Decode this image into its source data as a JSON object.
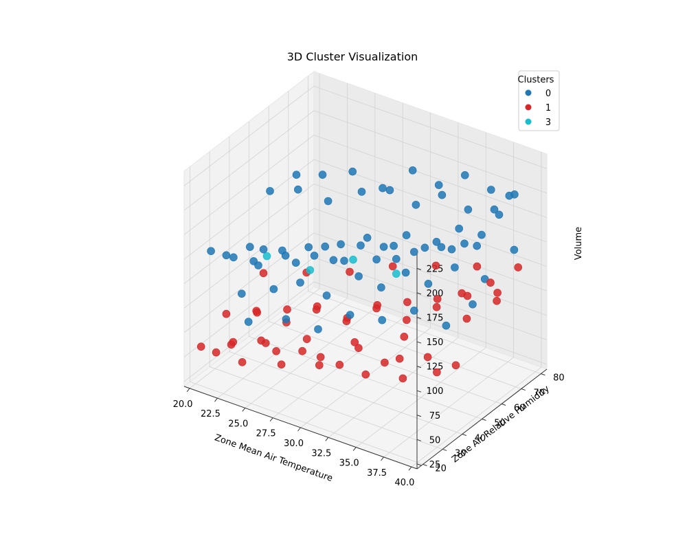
{
  "chart_data": {
    "type": "scatter",
    "title": "3D Cluster Visualization",
    "xlabel": "Zone Mean Air Temperature",
    "ylabel": "Zone Air Relative Humidity",
    "zlabel": "Volume",
    "xlim": [
      19.5,
      40.5
    ],
    "ylim": [
      17,
      83
    ],
    "zlim": [
      20,
      240
    ],
    "xticks": [
      "20.0",
      "22.5",
      "25.0",
      "27.5",
      "30.0",
      "32.5",
      "35.0",
      "37.5",
      "40.0"
    ],
    "yticks": [
      "20",
      "30",
      "40",
      "50",
      "60",
      "70",
      "80"
    ],
    "zticks": [
      "25",
      "50",
      "75",
      "100",
      "125",
      "150",
      "175",
      "200",
      "225"
    ],
    "grid": true,
    "legend": {
      "title": "Clusters",
      "position": "top-right"
    },
    "series": [
      {
        "name": "0",
        "color": "#1f77b4",
        "x": [
          20.5,
          21.0,
          22.0,
          23.0,
          24.0,
          25.5,
          27.0,
          28.0,
          29.5,
          31.0,
          32.0,
          33.5,
          35.0,
          36.0,
          37.5,
          20.8,
          22.5,
          24.5,
          26.0,
          27.5,
          29.0,
          30.5,
          32.5,
          34.0,
          35.5,
          21.5,
          23.5,
          25.0,
          26.5,
          28.5,
          30.0,
          31.5,
          33.0,
          34.5,
          36.5,
          22.0,
          24.0,
          26.0,
          28.0,
          30.0,
          32.0,
          34.0,
          36.0,
          38.0,
          39.0,
          23.0,
          25.5,
          27.5,
          29.5,
          31.5,
          33.5,
          35.5,
          37.0,
          20.5,
          22.5,
          24.5,
          27.0,
          29.0,
          31.0,
          33.0,
          35.0,
          37.0,
          38.5,
          21.0,
          23.5,
          26.0,
          28.5,
          31.0,
          34.0,
          36.5,
          39.5
        ],
        "y": [
          25,
          30,
          28,
          35,
          32,
          40,
          38,
          45,
          42,
          50,
          48,
          55,
          52,
          60,
          58,
          45,
          50,
          55,
          60,
          65,
          70,
          68,
          72,
          75,
          78,
          35,
          40,
          45,
          50,
          55,
          58,
          62,
          65,
          70,
          74,
          60,
          62,
          66,
          70,
          74,
          76,
          78,
          80,
          78,
          75,
          30,
          35,
          40,
          45,
          50,
          55,
          60,
          65,
          55,
          58,
          62,
          65,
          68,
          70,
          72,
          74,
          76,
          70,
          42,
          46,
          52,
          56,
          60,
          66,
          70,
          72
        ],
        "z": [
          150,
          140,
          145,
          130,
          155,
          135,
          160,
          140,
          150,
          145,
          165,
          155,
          170,
          160,
          175,
          110,
          120,
          115,
          125,
          130,
          120,
          140,
          135,
          150,
          145,
          95,
          100,
          105,
          90,
          110,
          100,
          115,
          105,
          120,
          110,
          180,
          185,
          190,
          175,
          195,
          185,
          200,
          190,
          195,
          205,
          80,
          85,
          75,
          90,
          85,
          95,
          80,
          100,
          165,
          170,
          160,
          175,
          180,
          170,
          185,
          175,
          180,
          190,
          130,
          125,
          135,
          140,
          130,
          145,
          150,
          155
        ]
      },
      {
        "name": "1",
        "color": "#d62728",
        "x": [
          20.5,
          21.5,
          22.5,
          23.5,
          24.5,
          25.5,
          26.5,
          27.5,
          28.5,
          29.5,
          30.5,
          31.5,
          32.5,
          33.5,
          34.5,
          35.5,
          36.5,
          37.5,
          38.5,
          21.0,
          23.0,
          25.0,
          27.0,
          29.0,
          31.0,
          33.0,
          35.0,
          37.0,
          39.0,
          22.0,
          24.0,
          26.0,
          28.0,
          30.0,
          32.0,
          34.0,
          36.0,
          38.0,
          20.8,
          23.8,
          26.8,
          29.8,
          32.8,
          35.8,
          38.8,
          39.5,
          37.8,
          34.2,
          30.8,
          27.2,
          24.2,
          21.8
        ],
        "y": [
          20,
          22,
          25,
          24,
          28,
          30,
          27,
          32,
          35,
          30,
          34,
          38,
          36,
          40,
          42,
          38,
          45,
          44,
          48,
          30,
          34,
          38,
          42,
          46,
          50,
          54,
          58,
          62,
          66,
          40,
          44,
          48,
          52,
          56,
          60,
          64,
          68,
          72,
          50,
          55,
          60,
          65,
          70,
          74,
          78,
          60,
          55,
          46,
          40,
          36,
          32,
          28
        ],
        "z": [
          60,
          55,
          65,
          50,
          70,
          60,
          55,
          65,
          50,
          70,
          60,
          75,
          55,
          65,
          70,
          60,
          75,
          65,
          70,
          80,
          85,
          75,
          90,
          80,
          95,
          85,
          100,
          90,
          110,
          70,
          75,
          80,
          70,
          85,
          90,
          95,
          100,
          105,
          90,
          95,
          100,
          110,
          115,
          120,
          125,
          140,
          130,
          85,
          75,
          70,
          60,
          55
        ]
      },
      {
        "name": "3",
        "color": "#17becf",
        "x": [
          22.0,
          25.0,
          28.0,
          31.0
        ],
        "y": [
          45,
          50,
          55,
          60
        ],
        "z": [
          120,
          110,
          125,
          115
        ]
      }
    ]
  }
}
